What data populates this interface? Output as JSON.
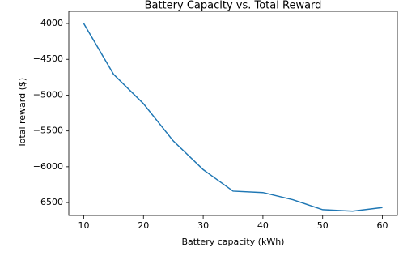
{
  "chart_data": {
    "type": "line",
    "title": "Battery Capacity vs. Total Reward",
    "xlabel": "Battery capacity (kWh)",
    "ylabel": "Total reward ($)",
    "x": [
      10,
      15,
      20,
      25,
      30,
      35,
      40,
      45,
      50,
      55,
      60
    ],
    "series": [
      {
        "color": "#1f77b4",
        "values": [
          -4000,
          -4710,
          -5120,
          -5640,
          -6040,
          -6340,
          -6360,
          -6460,
          -6600,
          -6620,
          -6570
        ]
      }
    ],
    "xlim": [
      7.5,
      62.5
    ],
    "xticks": [
      10,
      20,
      30,
      40,
      50,
      60
    ],
    "ylim": [
      -6680,
      -3830
    ],
    "yticks": [
      {
        "value": -4000,
        "label": "−4000"
      },
      {
        "value": -4500,
        "label": "−4500"
      },
      {
        "value": -5000,
        "label": "−5000"
      },
      {
        "value": -5500,
        "label": "−5500"
      },
      {
        "value": -6000,
        "label": "−6000"
      },
      {
        "value": -6500,
        "label": "−6500"
      }
    ],
    "grid": false
  }
}
